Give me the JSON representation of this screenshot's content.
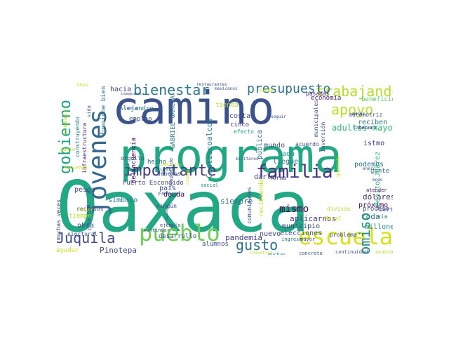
{
  "words": [
    {
      "text": "Oaxaca",
      "color": "#22a884"
    },
    {
      "text": "programa",
      "color": "#22a884"
    },
    {
      "text": "camino",
      "color": "#3b528b"
    },
    {
      "text": "jóvenes",
      "color": "#31688e"
    },
    {
      "text": "escuela",
      "color": "#d8e219"
    },
    {
      "text": "pueblo",
      "color": "#6ece58"
    },
    {
      "text": "familia",
      "color": "#46327e"
    },
    {
      "text": "importante",
      "color": "#433e85"
    },
    {
      "text": "bienestar",
      "color": "#2a788e"
    },
    {
      "text": "trabajando",
      "color": "#b5de2b"
    },
    {
      "text": "apoyo",
      "color": "#bddf26"
    },
    {
      "text": "presupuesto",
      "color": "#2c728e"
    },
    {
      "text": "gobierno",
      "color": "#1f9e89"
    },
    {
      "text": "Juquila",
      "color": "#3e4a89"
    },
    {
      "text": "gusto",
      "color": "#2d708e"
    },
    {
      "text": "compromiso",
      "color": "#21918c"
    },
    {
      "text": "mismo",
      "color": "#440154"
    },
    {
      "text": "adultos mayores",
      "color": "#35b779"
    },
    {
      "text": "Pinotepa",
      "color": "#3e4989"
    },
    {
      "text": "Coatzacoalcos",
      "color": "#2a788e"
    },
    {
      "text": "GABRIEL GARCÍA",
      "color": "#2a788e"
    },
    {
      "text": "Puerto Escondido",
      "color": "#3b528b"
    },
    {
      "text": "siempre",
      "color": "#2c728e"
    },
    {
      "text": "pandemia",
      "color": "#433e85"
    },
    {
      "text": "nuevo",
      "color": "#404688"
    },
    {
      "text": "elecciones",
      "color": "#3b528b"
    },
    {
      "text": "aplicarnos",
      "color": "#443983"
    },
    {
      "text": "municipio",
      "color": "#414487"
    },
    {
      "text": "dólares",
      "color": "#481f70"
    },
    {
      "text": "toda",
      "color": "#2a788e"
    },
    {
      "text": "podemos",
      "color": "#2c728e"
    },
    {
      "text": "millones",
      "color": "#21918c"
    },
    {
      "text": "próximo",
      "color": "#440154"
    },
    {
      "text": "proceso",
      "color": "#3e4a89"
    },
    {
      "text": "economía",
      "color": "#481769"
    },
    {
      "text": "beneficio",
      "color": "#5ec962"
    },
    {
      "text": "reciben",
      "color": "#2a788e"
    },
    {
      "text": "mundo",
      "color": "#3b528b"
    },
    {
      "text": "cada",
      "color": "#1f9e89"
    },
    {
      "text": "llegue",
      "color": "#2a788e"
    },
    {
      "text": "darle",
      "color": "#3e4989"
    },
    {
      "text": "forma",
      "color": "#433e85"
    },
    {
      "text": "pública",
      "color": "#2a788e"
    },
    {
      "text": "costa",
      "color": "#3b528b"
    },
    {
      "text": "cinco",
      "color": "#453781"
    },
    {
      "text": "efecto",
      "color": "#1f9e89"
    },
    {
      "text": "tienda",
      "color": "#b5de2b"
    },
    {
      "text": "pasadas",
      "color": "#481f70"
    },
    {
      "text": "tarde",
      "color": "#c8e020"
    },
    {
      "text": "hacia",
      "color": "#3e4989"
    },
    {
      "text": "Alejandro",
      "color": "#2a788e"
    },
    {
      "text": "empleo",
      "color": "#3b528b"
    },
    {
      "text": "delincuencia",
      "color": "#440154"
    },
    {
      "text": "hecho",
      "color": "#2c728e"
    },
    {
      "text": "junto",
      "color": "#2a788e"
    },
    {
      "text": "país",
      "color": "#3b528b"
    },
    {
      "text": "deuda",
      "color": "#440154"
    },
    {
      "text": "símbolo",
      "color": "#2a788e"
    },
    {
      "text": "pesos",
      "color": "#3e4a89"
    },
    {
      "text": "recursos",
      "color": "#414487"
    },
    {
      "text": "tiempo",
      "color": "#b5de2b"
    },
    {
      "text": "obra",
      "color": "#3b528b"
    },
    {
      "text": "muchas veces",
      "color": "#3e4989"
    },
    {
      "text": "trabajo",
      "color": "#bddf26"
    },
    {
      "text": "construyendo",
      "color": "#2a788e"
    },
    {
      "text": "infraestructura",
      "color": "#46327e"
    },
    {
      "text": "funcione bien",
      "color": "#2c728e"
    },
    {
      "text": "desarrollo",
      "color": "#3b528b"
    },
    {
      "text": "alumnos",
      "color": "#3e4989"
    },
    {
      "text": "continuar",
      "color": "#3b528b"
    },
    {
      "text": "ayudar",
      "color": "#d0e11c"
    },
    {
      "text": "Benito Juárez",
      "color": "#35b779"
    },
    {
      "text": "istmo",
      "color": "#433e85"
    },
    {
      "text": "inversión",
      "color": "#3b528b"
    },
    {
      "text": "municipales",
      "color": "#3b528b"
    },
    {
      "text": "automotriz",
      "color": "#3b528b"
    },
    {
      "text": "cabecera",
      "color": "#3b528b"
    },
    {
      "text": "gente",
      "color": "#2a788e"
    },
    {
      "text": "atender",
      "color": "#440154"
    },
    {
      "text": "vía",
      "color": "#2a788e"
    },
    {
      "text": "Puerto",
      "color": "#3b528b"
    },
    {
      "text": "problema",
      "color": "#3e4989"
    },
    {
      "text": "continuidad",
      "color": "#3b528b"
    },
    {
      "text": "avanzando",
      "color": "#b5de2b"
    },
    {
      "text": "concreto",
      "color": "#3b528b"
    },
    {
      "text": "muchas",
      "color": "#2a788e"
    },
    {
      "text": "industria",
      "color": "#b5de2b"
    },
    {
      "text": "ingreso",
      "color": "#2c728e"
    },
    {
      "text": "mayor",
      "color": "#3b528b"
    },
    {
      "text": "Morel",
      "color": "#cde11d"
    },
    {
      "text": "divisas",
      "color": "#b5de2b"
    },
    {
      "text": "recibiendo",
      "color": "#c2df23"
    },
    {
      "text": "comunidades",
      "color": "#3b528b"
    },
    {
      "text": "acuerdo",
      "color": "#3b528b"
    },
    {
      "text": "quedado",
      "color": "#c2df23"
    },
    {
      "text": "electoral",
      "color": "#3b528b"
    },
    {
      "text": "principal",
      "color": "#3b528b"
    },
    {
      "text": "mejor",
      "color": "#c8e020"
    },
    {
      "text": "vida",
      "color": "#3b528b"
    },
    {
      "text": "parte",
      "color": "#c8e020"
    },
    {
      "text": "haciendo",
      "color": "#c8e020"
    },
    {
      "text": "orgullo",
      "color": "#3b528b"
    },
    {
      "text": "debemos",
      "color": "#3b528b"
    },
    {
      "text": "ningún",
      "color": "#3b528b"
    },
    {
      "text": "ejemplo",
      "color": "#3b528b"
    },
    {
      "text": "social",
      "color": "#2a788e"
    },
    {
      "text": "suspendido",
      "color": "#3b528b"
    },
    {
      "text": "militares",
      "color": "#3b528b"
    },
    {
      "text": "años",
      "color": "#c8e020"
    },
    {
      "text": "contar",
      "color": "#3b528b"
    },
    {
      "text": "inaugurarlo",
      "color": "#3b528b"
    },
    {
      "text": "restaurantes",
      "color": "#3b528b"
    },
    {
      "text": "mexicanos",
      "color": "#3b528b"
    },
    {
      "text": "seguir",
      "color": "#3b528b"
    },
    {
      "text": "Guerrero",
      "color": "#c8e020"
    },
    {
      "text": "enero",
      "color": "#3b528b"
    },
    {
      "text": "modo",
      "color": "#3b528b"
    },
    {
      "text": "cerca",
      "color": "#3b528b"
    },
    {
      "text": "mesas",
      "color": "#3b528b"
    },
    {
      "text": "ciudad",
      "color": "#c8e020"
    },
    {
      "text": "puedo",
      "color": "#3b528b"
    },
    {
      "text": "religiosos",
      "color": "#3b528b"
    }
  ]
}
